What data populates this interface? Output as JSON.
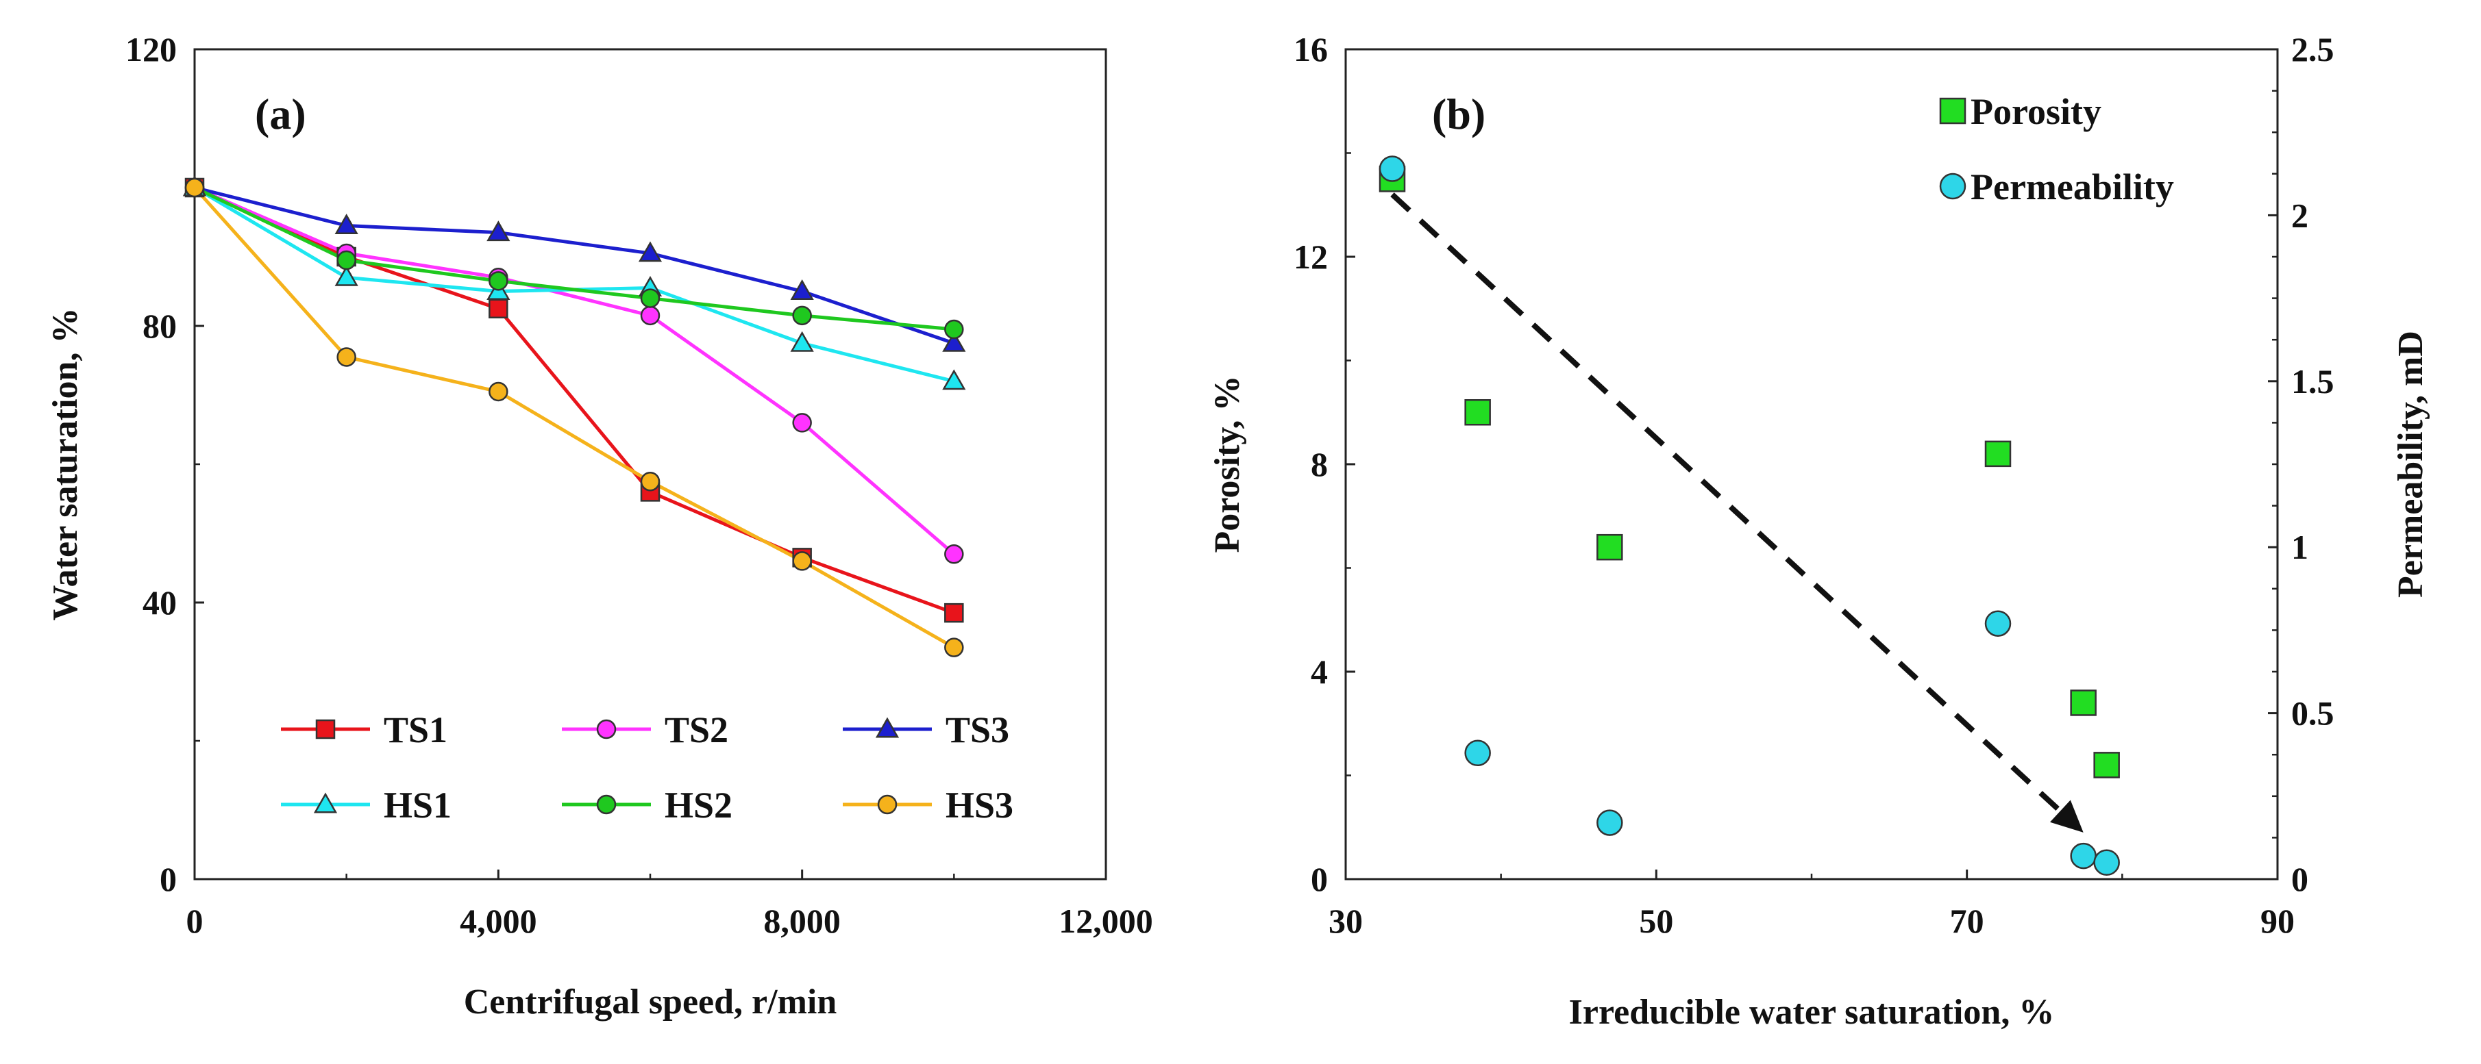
{
  "chart_data": [
    {
      "panel_label": "(a)",
      "type": "line",
      "xlabel": "Centrifugal speed, r/min",
      "ylabel": "Water saturation, %",
      "xlim": [
        0,
        12000
      ],
      "ylim": [
        0,
        120
      ],
      "x_ticks": [
        "0",
        "4,000",
        "8,000",
        "12,000"
      ],
      "y_ticks": [
        "0",
        "40",
        "80",
        "120"
      ],
      "x": [
        0,
        2000,
        4000,
        6000,
        8000,
        10000
      ],
      "series": [
        {
          "name": "TS1",
          "color": "#e8141b",
          "marker": "square",
          "values": [
            100,
            90,
            82.5,
            56,
            46.5,
            38.5
          ]
        },
        {
          "name": "TS2",
          "color": "#ff33ff",
          "marker": "circle",
          "values": [
            100,
            90.5,
            87,
            81.5,
            66,
            47
          ]
        },
        {
          "name": "TS3",
          "color": "#1c1fce",
          "marker": "triangle",
          "values": [
            100,
            94.5,
            93.5,
            90.5,
            85,
            77.5
          ]
        },
        {
          "name": "HS1",
          "color": "#1ee6f0",
          "marker": "triangle",
          "values": [
            100,
            87,
            85,
            85.5,
            77.5,
            72
          ]
        },
        {
          "name": "HS2",
          "color": "#1fc81f",
          "marker": "circle",
          "values": [
            100,
            89.5,
            86.5,
            84,
            81.5,
            79.5
          ]
        },
        {
          "name": "HS3",
          "color": "#f5b21b",
          "marker": "circle",
          "values": [
            100,
            75.5,
            70.5,
            57.5,
            46,
            33.5
          ]
        }
      ],
      "legend_position": "bottom-center"
    },
    {
      "panel_label": "(b)",
      "type": "scatter",
      "xlabel": "Irreducible water saturation, %",
      "ylabel_left": "Porosity, %",
      "ylabel_right": "Permeability, mD",
      "xlim": [
        30,
        90
      ],
      "ylim_left": [
        0,
        16
      ],
      "ylim_right": [
        0,
        2.5
      ],
      "x_ticks": [
        "30",
        "50",
        "70",
        "90"
      ],
      "y_ticks_left": [
        "0",
        "4",
        "8",
        "12",
        "16"
      ],
      "y_ticks_right": [
        "0",
        "0.5",
        "1",
        "1.5",
        "2",
        "2.5"
      ],
      "series": [
        {
          "name": "Porosity",
          "color": "#22dd22",
          "marker": "square",
          "axis": "left",
          "x": [
            33,
            38.5,
            47,
            72,
            77.5,
            79
          ],
          "values": [
            13.5,
            9.0,
            6.4,
            8.2,
            3.4,
            2.2
          ]
        },
        {
          "name": "Permeability",
          "color": "#2ed6e8",
          "marker": "circle",
          "axis": "right",
          "x": [
            33,
            38.5,
            47,
            72,
            77.5,
            79
          ],
          "values": [
            2.14,
            0.38,
            0.17,
            0.77,
            0.07,
            0.05
          ]
        }
      ],
      "trend_arrow": {
        "from": [
          33,
          13.2
        ],
        "to": [
          77.5,
          0.9
        ],
        "style": "dashed"
      },
      "legend_position": "top-right"
    }
  ]
}
